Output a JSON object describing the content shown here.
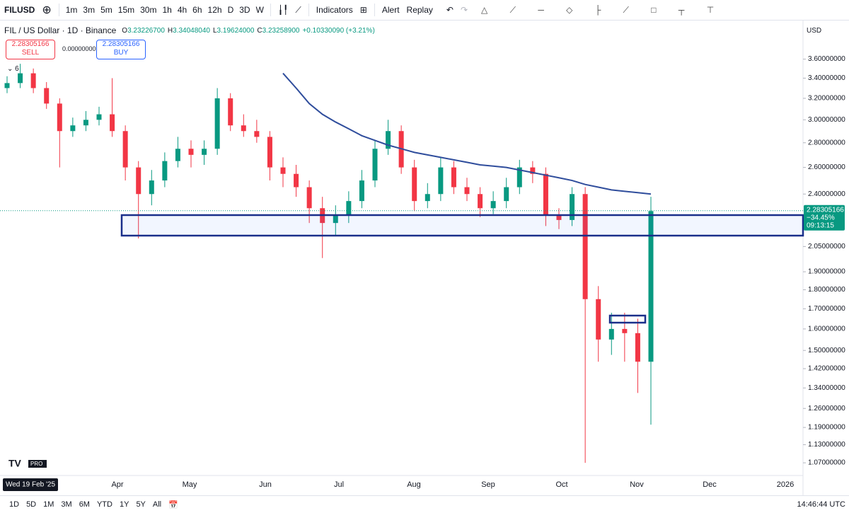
{
  "toolbar": {
    "symbol": "FILUSD",
    "intervals": [
      "1m",
      "3m",
      "5m",
      "15m",
      "30m",
      "1h",
      "4h",
      "6h",
      "12h",
      "D",
      "3D",
      "W"
    ],
    "indicators": "Indicators",
    "alert": "Alert",
    "replay": "Replay",
    "currency": "USD"
  },
  "legend": {
    "title": "FIL / US Dollar · 1D · Binance",
    "ohlc": [
      {
        "k": "O",
        "v": "3.23226700"
      },
      {
        "k": "H",
        "v": "3.34048040"
      },
      {
        "k": "L",
        "v": "3.19624000"
      },
      {
        "k": "C",
        "v": "3.23258900"
      }
    ],
    "change": "+0.10330090 (+3.21%)",
    "indicator_count": "6"
  },
  "trade": {
    "sell_price": "2.28305166",
    "sell": "SELL",
    "spread": "0.00000000",
    "buy_price": "2.28305166",
    "buy": "BUY"
  },
  "chart_data": {
    "type": "candlestick",
    "log_scale": true,
    "up_color": "#089981",
    "down_color": "#f23645",
    "ma_color": "#2f4d9c",
    "ylim": [
      1.03,
      3.85
    ],
    "yticks": [
      {
        "value": 3.6,
        "label": "3.60000000"
      },
      {
        "value": 3.4,
        "label": "3.40000000"
      },
      {
        "value": 3.2,
        "label": "3.20000000"
      },
      {
        "value": 3,
        "label": "3.00000000"
      },
      {
        "value": 2.8,
        "label": "2.80000000"
      },
      {
        "value": 2.6,
        "label": "2.60000000"
      },
      {
        "value": 2.4,
        "label": "2.40000000"
      },
      {
        "value": 2.05,
        "label": "2.05000000"
      },
      {
        "value": 1.9,
        "label": "1.90000000"
      },
      {
        "value": 1.8,
        "label": "1.80000000"
      },
      {
        "value": 1.7,
        "label": "1.70000000"
      },
      {
        "value": 1.6,
        "label": "1.60000000"
      },
      {
        "value": 1.5,
        "label": "1.50000000"
      },
      {
        "value": 1.42,
        "label": "1.42000000"
      },
      {
        "value": 1.34,
        "label": "1.34000000"
      },
      {
        "value": 1.26,
        "label": "1.26000000"
      },
      {
        "value": 1.19,
        "label": "1.19000000"
      },
      {
        "value": 1.13,
        "label": "1.13000000"
      },
      {
        "value": 1.07,
        "label": "1.07000000"
      }
    ],
    "x_labels": [
      "Apr",
      "May",
      "Jun",
      "Jul",
      "Aug",
      "Sep",
      "Oct",
      "Nov",
      "Dec",
      "2026"
    ],
    "crosshair_date": "Wed 19 Feb '25",
    "candles": [
      [
        3.3,
        3.42,
        3.25,
        3.35
      ],
      [
        3.35,
        3.55,
        3.3,
        3.45
      ],
      [
        3.45,
        3.5,
        3.25,
        3.3
      ],
      [
        3.3,
        3.36,
        3.1,
        3.15
      ],
      [
        3.15,
        3.2,
        2.6,
        2.9
      ],
      [
        2.9,
        3.02,
        2.85,
        2.95
      ],
      [
        2.95,
        3.08,
        2.9,
        3.0
      ],
      [
        3.0,
        3.12,
        2.95,
        3.05
      ],
      [
        3.05,
        3.4,
        2.85,
        2.9
      ],
      [
        2.9,
        2.95,
        2.5,
        2.6
      ],
      [
        2.6,
        2.65,
        2.1,
        2.4
      ],
      [
        2.4,
        2.58,
        2.32,
        2.5
      ],
      [
        2.5,
        2.72,
        2.45,
        2.65
      ],
      [
        2.65,
        2.85,
        2.6,
        2.75
      ],
      [
        2.75,
        2.82,
        2.6,
        2.7
      ],
      [
        2.7,
        2.82,
        2.62,
        2.75
      ],
      [
        2.75,
        3.3,
        2.7,
        3.2
      ],
      [
        3.2,
        3.25,
        2.9,
        2.95
      ],
      [
        2.95,
        3.05,
        2.85,
        2.9
      ],
      [
        2.9,
        3.0,
        2.8,
        2.85
      ],
      [
        2.85,
        2.9,
        2.5,
        2.6
      ],
      [
        2.6,
        2.68,
        2.45,
        2.55
      ],
      [
        2.55,
        2.62,
        2.38,
        2.45
      ],
      [
        2.45,
        2.5,
        2.2,
        2.3
      ],
      [
        2.3,
        2.38,
        1.98,
        2.2
      ],
      [
        2.2,
        2.32,
        2.12,
        2.25
      ],
      [
        2.25,
        2.42,
        2.2,
        2.35
      ],
      [
        2.35,
        2.58,
        2.3,
        2.5
      ],
      [
        2.5,
        2.82,
        2.45,
        2.75
      ],
      [
        2.75,
        3.0,
        2.7,
        2.9
      ],
      [
        2.9,
        2.95,
        2.55,
        2.6
      ],
      [
        2.6,
        2.66,
        2.28,
        2.35
      ],
      [
        2.35,
        2.48,
        2.3,
        2.4
      ],
      [
        2.4,
        2.68,
        2.35,
        2.6
      ],
      [
        2.6,
        2.65,
        2.4,
        2.45
      ],
      [
        2.45,
        2.52,
        2.35,
        2.4
      ],
      [
        2.4,
        2.45,
        2.24,
        2.3
      ],
      [
        2.3,
        2.42,
        2.26,
        2.35
      ],
      [
        2.35,
        2.52,
        2.3,
        2.45
      ],
      [
        2.45,
        2.66,
        2.4,
        2.6
      ],
      [
        2.6,
        2.65,
        2.48,
        2.55
      ],
      [
        2.55,
        2.6,
        2.18,
        2.25
      ],
      [
        2.25,
        2.3,
        2.16,
        2.22
      ],
      [
        2.22,
        2.45,
        2.18,
        2.4
      ],
      [
        2.4,
        2.45,
        1.07,
        1.75
      ],
      [
        1.75,
        1.82,
        1.45,
        1.55
      ],
      [
        1.55,
        1.68,
        1.48,
        1.6
      ],
      [
        1.6,
        1.68,
        1.45,
        1.58
      ],
      [
        1.58,
        1.65,
        1.32,
        1.45
      ],
      [
        1.45,
        2.38,
        1.2,
        2.28
      ]
    ],
    "ma": [
      null,
      null,
      null,
      null,
      null,
      null,
      null,
      null,
      null,
      null,
      null,
      null,
      null,
      null,
      null,
      null,
      null,
      null,
      null,
      null,
      null,
      3.45,
      3.3,
      3.15,
      3.05,
      2.98,
      2.92,
      2.86,
      2.82,
      2.78,
      2.75,
      2.72,
      2.7,
      2.68,
      2.66,
      2.64,
      2.62,
      2.61,
      2.6,
      2.58,
      2.56,
      2.54,
      2.52,
      2.5,
      2.47,
      2.45,
      2.43,
      2.42,
      2.41,
      2.4
    ],
    "last_price": {
      "value": 2.28305166,
      "label": "2.28305166",
      "change": "−34.45%",
      "countdown": "09:13:15"
    }
  },
  "bottom_bar": {
    "ranges": [
      "1D",
      "5D",
      "1M",
      "3M",
      "6M",
      "YTD",
      "1Y",
      "5Y",
      "All"
    ],
    "clock": "14:46:44 UTC"
  }
}
